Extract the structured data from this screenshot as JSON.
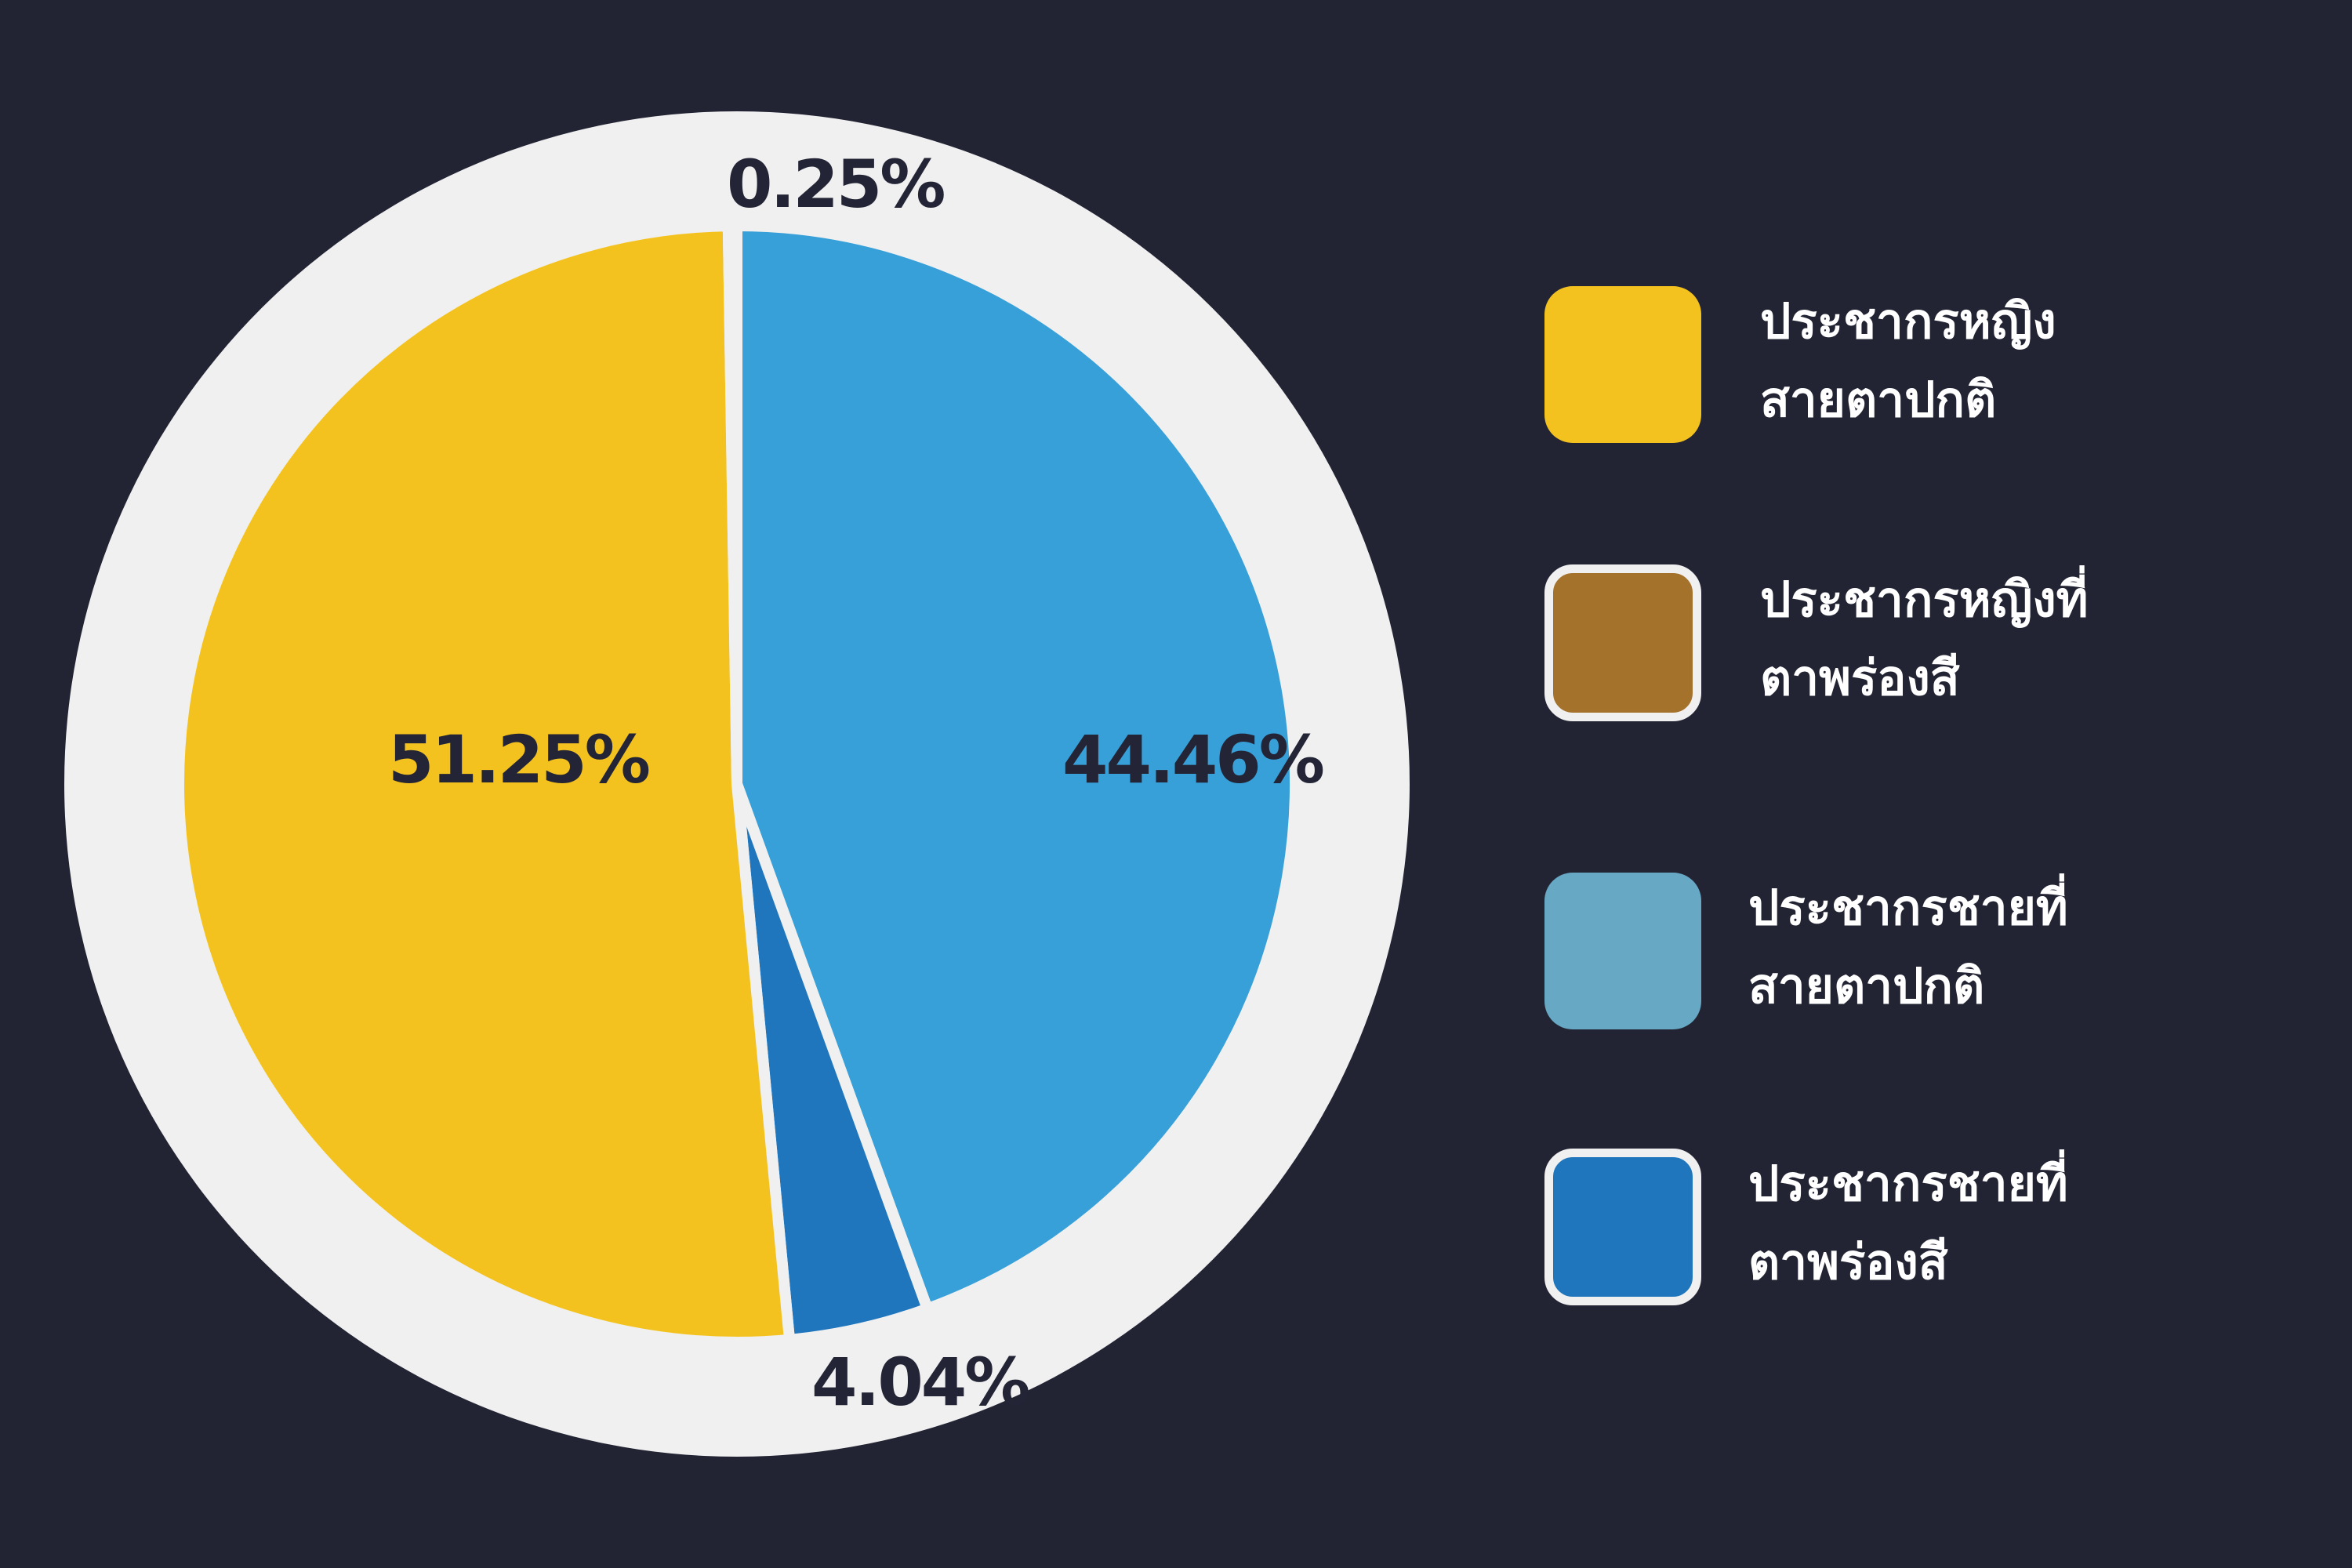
{
  "chart_data": {
    "type": "pie",
    "slices": [
      {
        "name": "ประชากรชายที่สายตาปกติ",
        "value": 44.46,
        "label": "44.46%",
        "color": "#38a0d8"
      },
      {
        "name": "ประชากรชายที่ตาพร่องสี",
        "value": 4.04,
        "label": "4.04%",
        "color": "#1f76bd"
      },
      {
        "name": "ประชากรหญิงสายตาปกติ",
        "value": 51.25,
        "label": "51.25%",
        "color": "#f4c21f"
      },
      {
        "name": "ประชากรหญิงที่ตาพร่องสี",
        "value": 0.25,
        "label": "0.25%",
        "color": "#a5722c"
      }
    ],
    "legend_position": "right"
  },
  "legend": [
    {
      "line1": "ประชากรหญิง",
      "line2": "สายตาปกติ",
      "color": "#f4c21f",
      "outlined": false
    },
    {
      "line1": "ประชากรหญิงที่",
      "line2": "ตาพร่องสี",
      "color": "#a5722c",
      "outlined": true
    },
    {
      "line1": "ประชากรชายที่",
      "line2": "สายตาปกติ",
      "color": "#67a8c4",
      "outlined": false
    },
    {
      "line1": "ประชากรชายที่",
      "line2": "ตาพร่องสี",
      "color": "#1f76bd",
      "outlined": true
    }
  ],
  "colors": {
    "background": "#222434",
    "ring": "#f0f0f0",
    "label_text": "#232536"
  }
}
